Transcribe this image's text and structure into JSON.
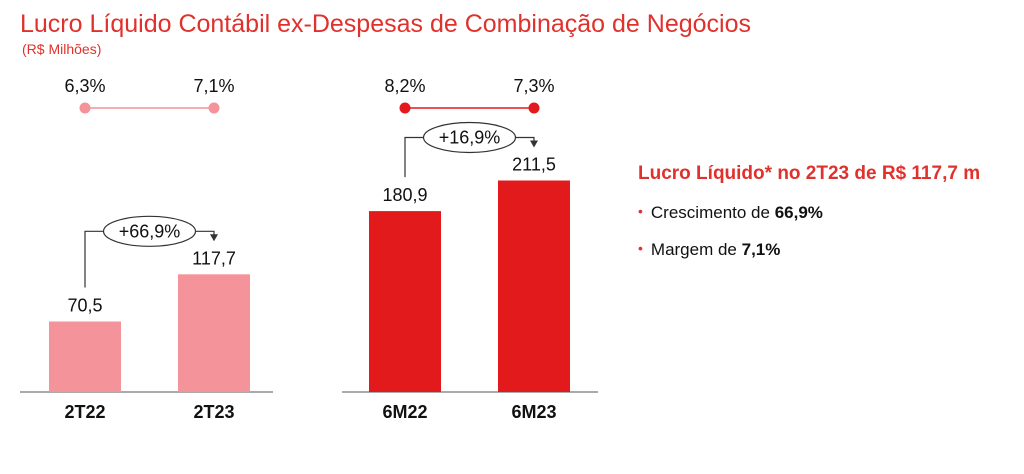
{
  "header": {
    "title": "Lucro Líquido Contábil ex-Despesas de Combinação de Negócios",
    "subtitle": "(R$ Milhões)"
  },
  "colors": {
    "accent": "#e0312c",
    "quarter_bar": "#f4939a",
    "semester_bar": "#e31a1c"
  },
  "chart_data": [
    {
      "type": "bar",
      "categories": [
        "2T22",
        "2T23"
      ],
      "values": [
        70.5,
        117.7
      ],
      "value_labels": [
        "70,5",
        "117,7"
      ],
      "growth_label": "+66,9%",
      "margins": [
        6.3,
        7.1
      ],
      "margin_labels": [
        "6,3%",
        "7,1%"
      ],
      "ylim": [
        0,
        230
      ],
      "color": "#f4939a"
    },
    {
      "type": "bar",
      "categories": [
        "6M22",
        "6M23"
      ],
      "values": [
        180.9,
        211.5
      ],
      "value_labels": [
        "180,9",
        "211,5"
      ],
      "growth_label": "+16,9%",
      "margins": [
        8.2,
        7.3
      ],
      "margin_labels": [
        "8,2%",
        "7,3%"
      ],
      "ylim": [
        0,
        230
      ],
      "color": "#e31a1c"
    }
  ],
  "side": {
    "headline": "Lucro Líquido* no 2T23 de R$ 117,7 m",
    "items": [
      {
        "prefix": "Crescimento de ",
        "value": "66,9%"
      },
      {
        "prefix": "Margem de ",
        "value": "7,1%"
      }
    ]
  }
}
